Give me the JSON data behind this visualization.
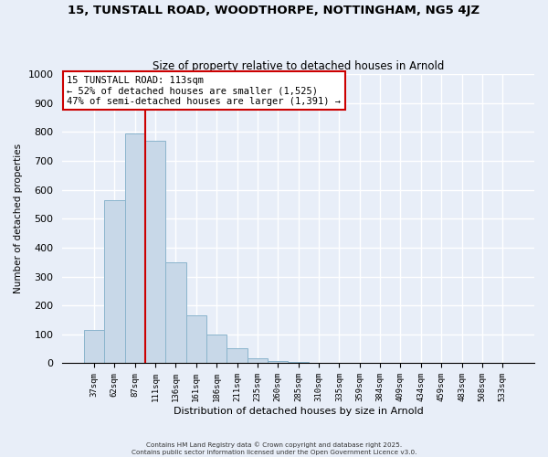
{
  "title": "15, TUNSTALL ROAD, WOODTHORPE, NOTTINGHAM, NG5 4JZ",
  "subtitle": "Size of property relative to detached houses in Arnold",
  "xlabel": "Distribution of detached houses by size in Arnold",
  "ylabel": "Number of detached properties",
  "bar_labels": [
    "37sqm",
    "62sqm",
    "87sqm",
    "111sqm",
    "136sqm",
    "161sqm",
    "186sqm",
    "211sqm",
    "235sqm",
    "260sqm",
    "285sqm",
    "310sqm",
    "335sqm",
    "359sqm",
    "384sqm",
    "409sqm",
    "434sqm",
    "459sqm",
    "483sqm",
    "508sqm",
    "533sqm"
  ],
  "bar_values": [
    115,
    565,
    795,
    770,
    350,
    165,
    98,
    52,
    18,
    8,
    5,
    0,
    0,
    0,
    0,
    0,
    0,
    0,
    0,
    0,
    0
  ],
  "bar_color": "#c8d8e8",
  "bar_edge_color": "#8ab4cc",
  "vline_x": 2.5,
  "vline_color": "#cc0000",
  "ylim": [
    0,
    1000
  ],
  "yticks": [
    0,
    100,
    200,
    300,
    400,
    500,
    600,
    700,
    800,
    900,
    1000
  ],
  "annotation_title": "15 TUNSTALL ROAD: 113sqm",
  "annotation_line1": "← 52% of detached houses are smaller (1,525)",
  "annotation_line2": "47% of semi-detached houses are larger (1,391) →",
  "annotation_box_color": "#ffffff",
  "annotation_box_edge_color": "#cc0000",
  "footer_line1": "Contains HM Land Registry data © Crown copyright and database right 2025.",
  "footer_line2": "Contains public sector information licensed under the Open Government Licence v3.0.",
  "background_color": "#e8eef8",
  "grid_color": "#ffffff"
}
